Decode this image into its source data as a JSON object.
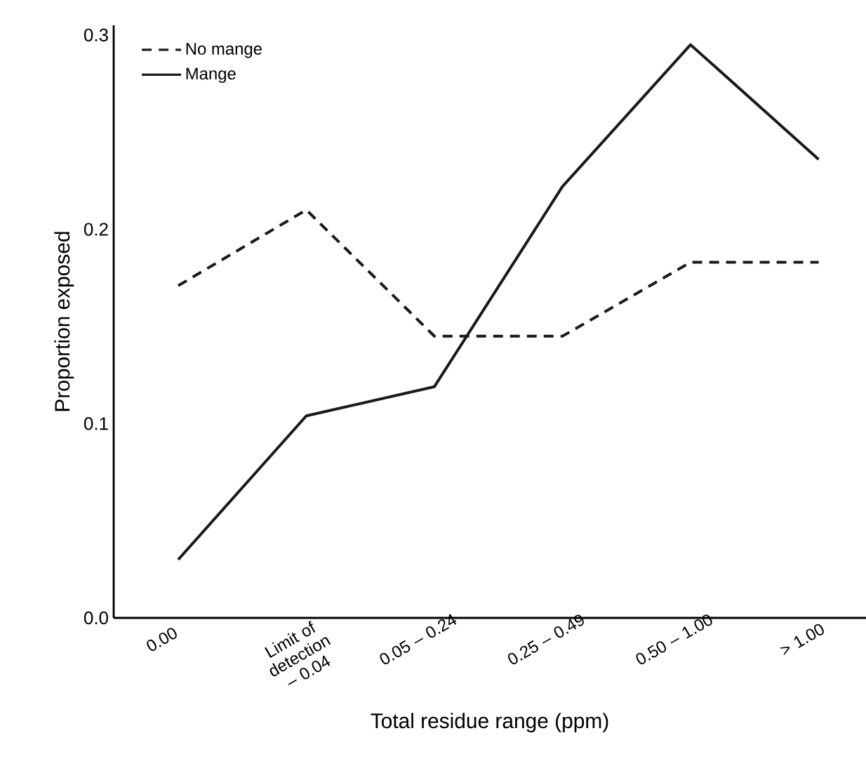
{
  "chart_data": {
    "type": "line",
    "xlabel": "Total residue range (ppm)",
    "ylabel": "Proportion exposed",
    "categories": [
      "0.00",
      "Limit of detection – 0.04",
      "0.05 – 0.24",
      "0.25 – 0.49",
      "0.50 – 1.00",
      "> 1.00"
    ],
    "series": [
      {
        "name": "No mange",
        "color": "#1a1a1a",
        "line_style": "dashed",
        "values": [
          0.171,
          0.21,
          0.145,
          0.145,
          0.183,
          0.183
        ]
      },
      {
        "name": "Mange",
        "color": "#1a1a1a",
        "line_style": "solid",
        "values": [
          0.03,
          0.104,
          0.119,
          0.222,
          0.295,
          0.236
        ]
      }
    ],
    "ylim": [
      0,
      0.305
    ],
    "yticks": [
      {
        "value": 0,
        "label": "0.0"
      },
      0.1,
      0.2,
      0.3
    ],
    "grid": false,
    "legend": "top left",
    "marker": "none"
  }
}
